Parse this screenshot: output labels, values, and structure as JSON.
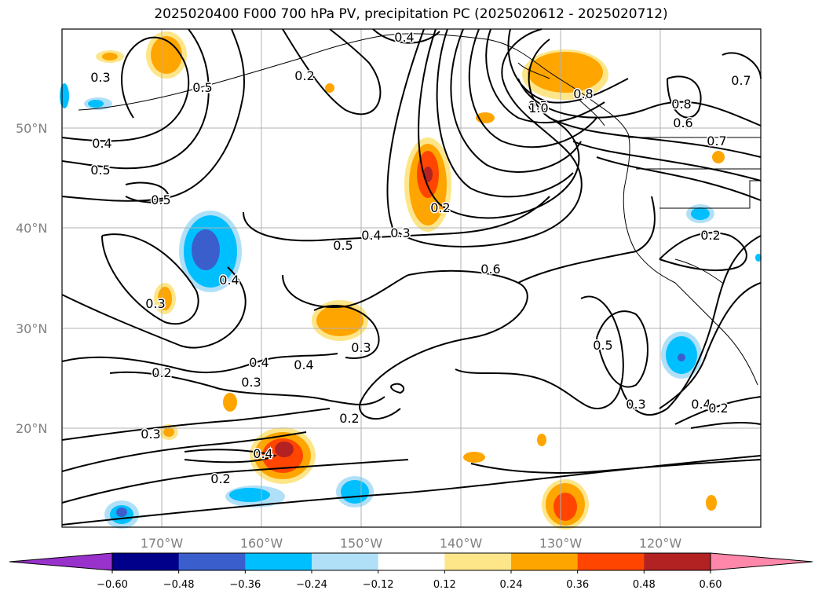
{
  "title": "2025020400 F000 700 hPa PV, precipitation PC (2025020612 - 2025020712)",
  "lat_labels": [
    "50°N",
    "40°N",
    "30°N",
    "20°N"
  ],
  "lon_labels": [
    "170°W",
    "160°W",
    "150°W",
    "140°W",
    "130°W",
    "120°W"
  ],
  "contour_labels": [
    "0.4",
    "0.3",
    "0.5",
    "0.2",
    "0.4",
    "0.5",
    "0.5",
    "0.3",
    "1.0",
    "0.8",
    "0.8",
    "0.6",
    "0.7",
    "0.7",
    "0.2",
    "0.4",
    "0.3",
    "0.5",
    "0.4",
    "0.6",
    "0.3",
    "0.4",
    "0.4",
    "0.3",
    "0.2",
    "0.3",
    "0.5",
    "0.2",
    "0.3",
    "0.4",
    "0.2",
    "0.3",
    "0.4",
    "0.2",
    "0.2"
  ],
  "colorbar": {
    "ticks": [
      "−0.60",
      "−0.48",
      "−0.36",
      "−0.24",
      "−0.12",
      "0.12",
      "0.24",
      "0.36",
      "0.48",
      "0.60"
    ],
    "colors": [
      "#9932cc",
      "#00008b",
      "#3a5fcd",
      "#00bfff",
      "#b0e0f8",
      "#ffffff",
      "#fde68a",
      "#ffa500",
      "#ff4500",
      "#b22222",
      "#ff88aa"
    ]
  }
}
